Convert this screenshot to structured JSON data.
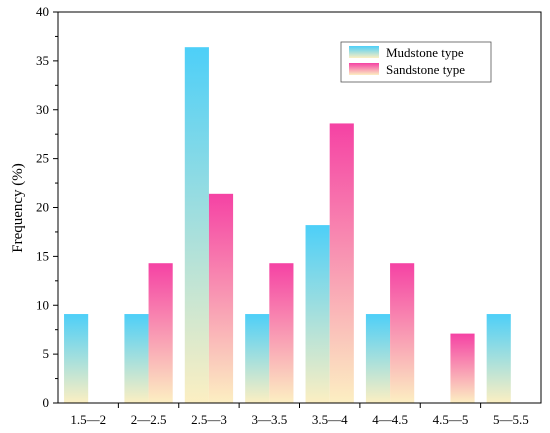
{
  "chart_data": {
    "type": "bar",
    "title": "",
    "xlabel": "",
    "ylabel": "Frequency (%)",
    "ylim": [
      0,
      40
    ],
    "yticks": [
      0,
      5,
      10,
      15,
      20,
      25,
      30,
      35,
      40
    ],
    "categories": [
      "1.5—2",
      "2—2.5",
      "2.5—3",
      "3—3.5",
      "3.5—4",
      "4—4.5",
      "4.5—5",
      "5—5.5"
    ],
    "series": [
      {
        "name": "Mudstone type",
        "values": [
          9.1,
          9.1,
          36.4,
          9.1,
          18.2,
          9.1,
          0,
          9.1
        ],
        "color_top": "#4dcff8",
        "color_bottom": "#fcefc2"
      },
      {
        "name": "Sandstone type",
        "values": [
          0,
          14.3,
          21.4,
          14.3,
          28.6,
          14.3,
          7.1,
          0
        ],
        "color_top": "#f542a4",
        "color_bottom": "#fcefc2"
      }
    ],
    "legend_position": "top-right",
    "grid": false
  }
}
